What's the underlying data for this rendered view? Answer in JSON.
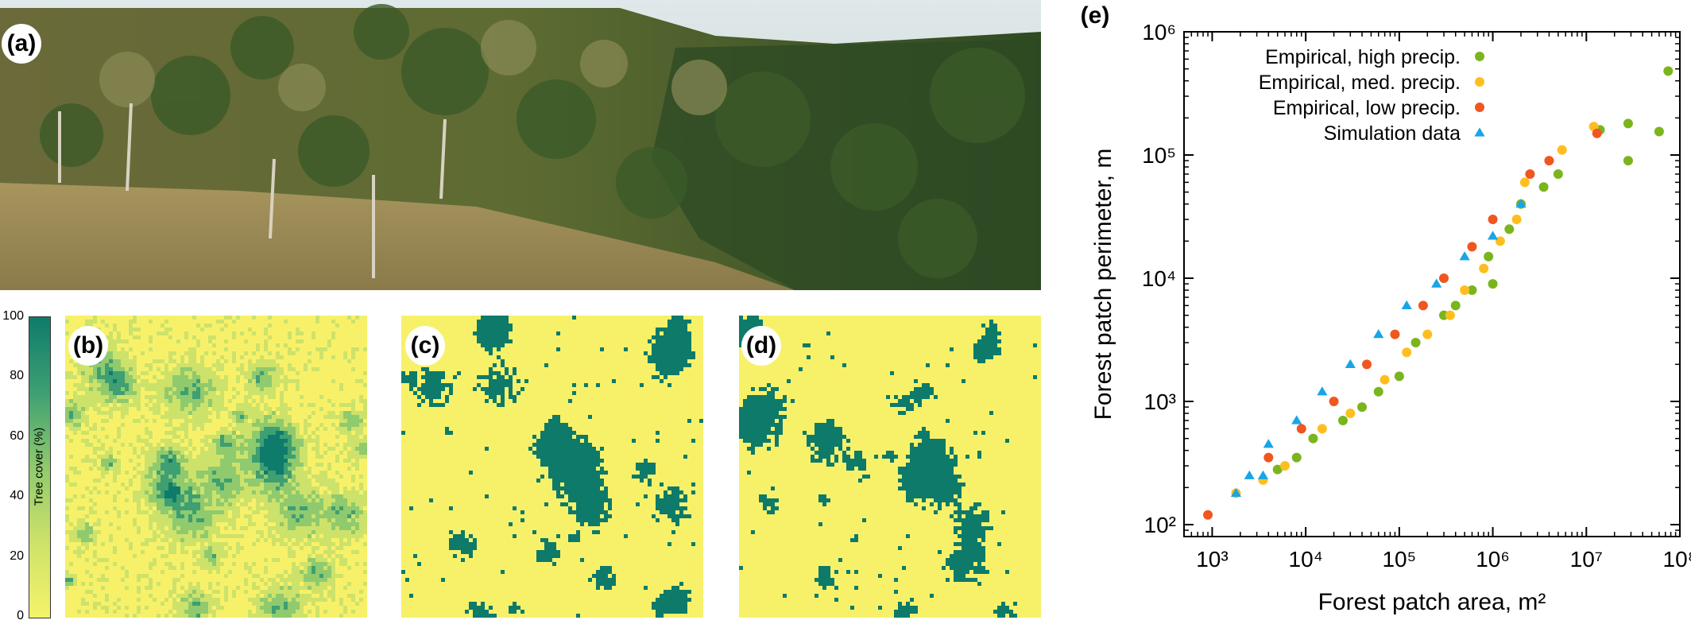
{
  "panels": {
    "a": "(a)",
    "b": "(b)",
    "c": "(c)",
    "d": "(d)",
    "e": "(e)"
  },
  "colorbar": {
    "title": "Tree cover (%)",
    "ticks": [
      "0",
      "20",
      "40",
      "60",
      "80",
      "100"
    ],
    "colors": [
      "#f5f36a",
      "#cde26a",
      "#8fca6e",
      "#3e9f72",
      "#0e7b6b"
    ]
  },
  "map_colors": {
    "background": "#f7f16a",
    "forest": "#0d7a6a"
  },
  "chart_data": {
    "type": "scatter",
    "xlabel": "Forest patch area, m²",
    "ylabel": "Forest patch perimeter, m",
    "xscale": "log",
    "yscale": "log",
    "xlim": [
      500,
      100000000
    ],
    "ylim": [
      80,
      1000000
    ],
    "xticks": [
      "10³",
      "10⁴",
      "10⁵",
      "10⁶",
      "10⁷",
      "10⁸"
    ],
    "yticks": [
      "10²",
      "10³",
      "10⁴",
      "10⁵",
      "10⁶"
    ],
    "grid": false,
    "legend_position": "top-left",
    "series": [
      {
        "name": "Empirical, high precip.",
        "color": "#7ab51d",
        "marker": "circle",
        "points": [
          [
            75000000,
            480000
          ],
          [
            14000000,
            160000
          ],
          [
            28000000,
            180000
          ],
          [
            28000000,
            90000
          ],
          [
            60000000,
            155000
          ],
          [
            5000000,
            70000
          ],
          [
            3500000,
            55000
          ],
          [
            2000000,
            40000
          ],
          [
            1500000,
            25000
          ],
          [
            900000,
            15000
          ],
          [
            1000000,
            9000
          ],
          [
            600000,
            8000
          ],
          [
            400000,
            6000
          ],
          [
            300000,
            5000
          ],
          [
            150000,
            3000
          ],
          [
            100000,
            1600
          ],
          [
            60000,
            1200
          ],
          [
            40000,
            900
          ],
          [
            25000,
            700
          ],
          [
            12000,
            500
          ],
          [
            8000,
            350
          ],
          [
            5000,
            280
          ]
        ]
      },
      {
        "name": "Empirical, med. precip.",
        "color": "#ffbe1f",
        "marker": "circle",
        "points": [
          [
            12000000,
            170000
          ],
          [
            5500000,
            110000
          ],
          [
            2200000,
            60000
          ],
          [
            1800000,
            30000
          ],
          [
            1200000,
            20000
          ],
          [
            800000,
            12000
          ],
          [
            500000,
            8000
          ],
          [
            350000,
            5000
          ],
          [
            200000,
            3500
          ],
          [
            120000,
            2500
          ],
          [
            70000,
            1500
          ],
          [
            30000,
            800
          ],
          [
            15000,
            600
          ],
          [
            6000,
            300
          ],
          [
            3500,
            230
          ],
          [
            1800,
            180
          ]
        ]
      },
      {
        "name": "Empirical, low precip.",
        "color": "#f0561f",
        "marker": "circle",
        "points": [
          [
            13000000,
            150000
          ],
          [
            4000000,
            90000
          ],
          [
            2500000,
            70000
          ],
          [
            1000000,
            30000
          ],
          [
            600000,
            18000
          ],
          [
            300000,
            10000
          ],
          [
            180000,
            6000
          ],
          [
            90000,
            3500
          ],
          [
            45000,
            2000
          ],
          [
            20000,
            1000
          ],
          [
            9000,
            600
          ],
          [
            4000,
            350
          ],
          [
            900,
            120
          ]
        ]
      },
      {
        "name": "Simulation data",
        "color": "#19a5e6",
        "marker": "triangle",
        "points": [
          [
            2000000,
            40000
          ],
          [
            1000000,
            22000
          ],
          [
            500000,
            15000
          ],
          [
            250000,
            9000
          ],
          [
            120000,
            6000
          ],
          [
            60000,
            3500
          ],
          [
            30000,
            2000
          ],
          [
            15000,
            1200
          ],
          [
            8000,
            700
          ],
          [
            4000,
            450
          ],
          [
            2500,
            250
          ],
          [
            1800,
            180
          ],
          [
            3500,
            250
          ]
        ]
      }
    ]
  }
}
